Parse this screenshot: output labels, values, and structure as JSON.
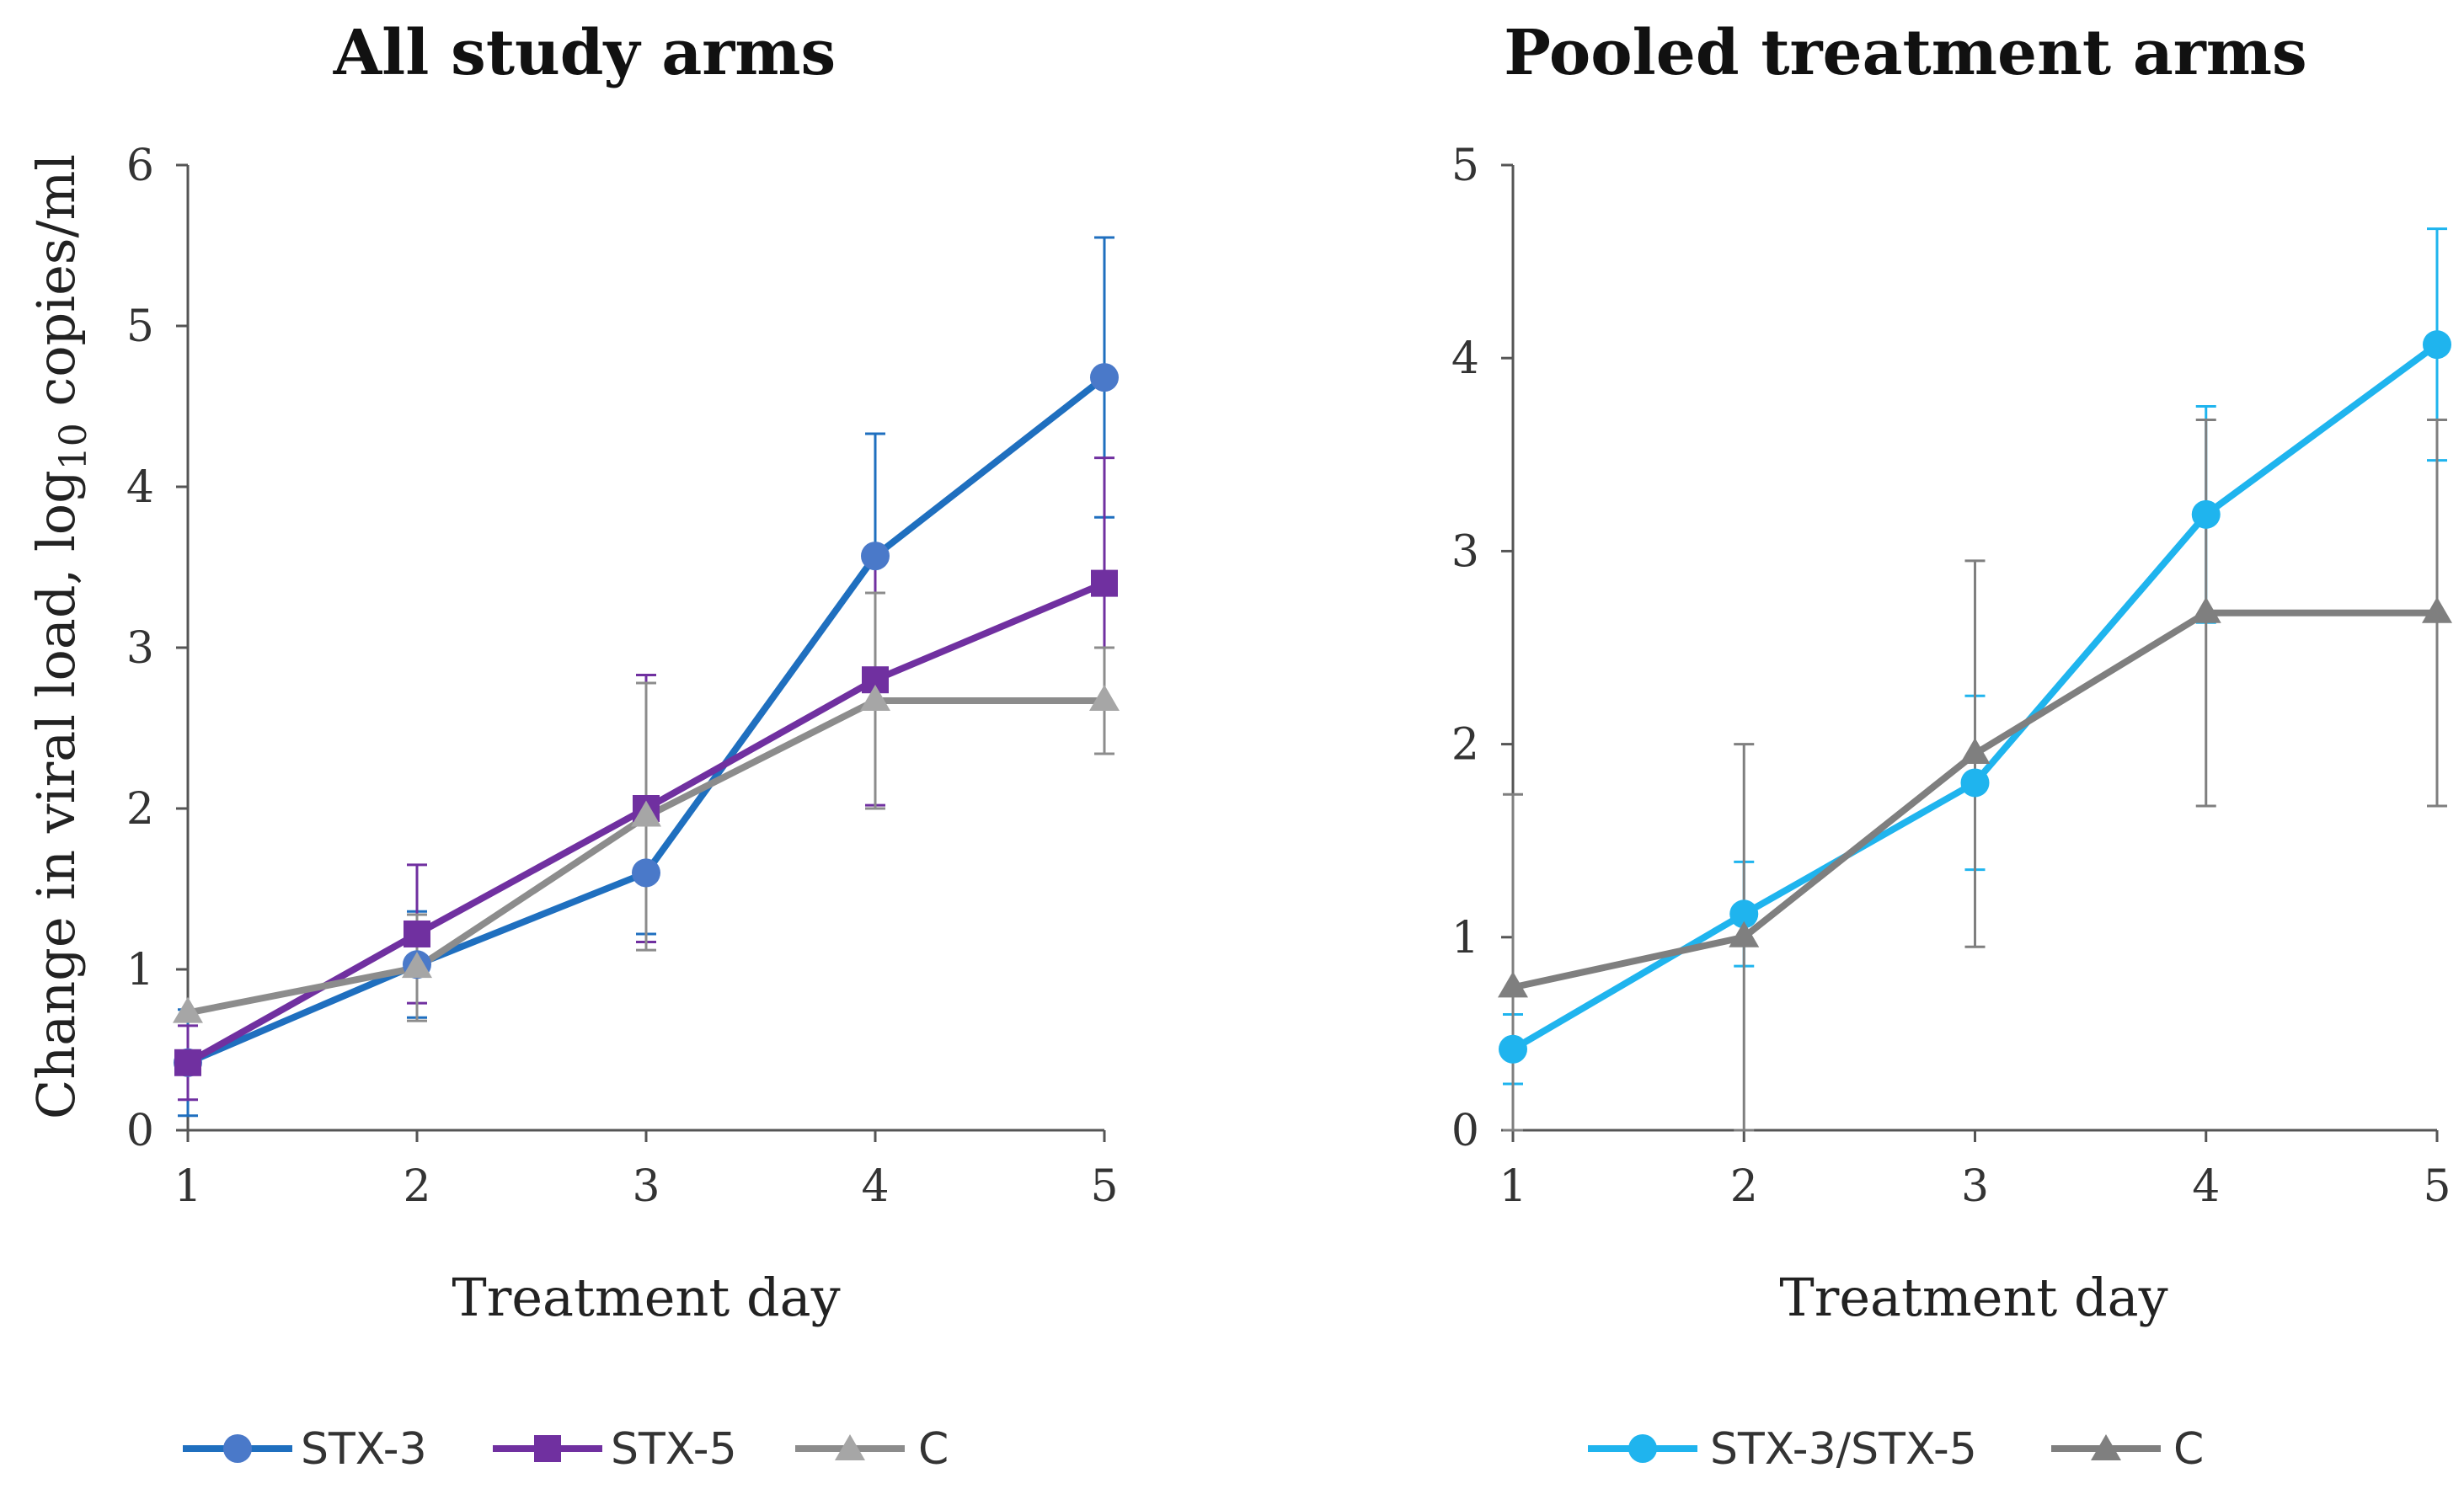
{
  "chart_data": [
    {
      "type": "line",
      "title": "All study arms",
      "xlabel": "Treatment day",
      "ylabel": "Change in viral load, log10 copies/ml",
      "ylabel_parts": [
        "Change in viral load, log",
        "10",
        " copies/ml"
      ],
      "x": [
        1,
        2,
        3,
        4,
        5
      ],
      "xlim": [
        1,
        5
      ],
      "ylim": [
        0,
        6
      ],
      "yticks": [
        0,
        1,
        2,
        3,
        4,
        5,
        6
      ],
      "xticks": [
        1,
        2,
        3,
        4,
        5
      ],
      "legend_position": "bottom",
      "series": [
        {
          "name": "STX-3",
          "color": "#1f6fbf",
          "marker": "circle",
          "marker_color": "#4a79c9",
          "values": [
            0.42,
            1.03,
            1.6,
            3.57,
            4.68
          ],
          "error": [
            0.33,
            0.33,
            0.38,
            0.76,
            0.87
          ]
        },
        {
          "name": "STX-5",
          "color": "#7030a0",
          "marker": "square",
          "marker_color": "#7030a0",
          "values": [
            0.42,
            1.22,
            2.0,
            2.8,
            3.4
          ],
          "error": [
            0.23,
            0.43,
            0.83,
            0.78,
            0.78
          ]
        },
        {
          "name": "C",
          "color": "#8c8c8c",
          "marker": "triangle",
          "marker_color": "#a6a6a6",
          "values": [
            0.73,
            1.01,
            1.95,
            2.67,
            2.67
          ],
          "error": [
            0.0,
            0.33,
            0.83,
            0.67,
            0.33
          ]
        }
      ]
    },
    {
      "type": "line",
      "title": "Pooled treatment arms",
      "xlabel": "Treatment day",
      "ylabel": "",
      "x": [
        1,
        2,
        3,
        4,
        5
      ],
      "xlim": [
        1,
        5
      ],
      "ylim": [
        0,
        5
      ],
      "yticks": [
        0,
        1,
        2,
        3,
        4,
        5
      ],
      "xticks": [
        1,
        2,
        3,
        4,
        5
      ],
      "legend_position": "bottom",
      "series": [
        {
          "name": "STX-3/STX-5",
          "color": "#1fb4ee",
          "marker": "circle",
          "marker_color": "#1fb4ee",
          "values": [
            0.42,
            1.12,
            1.8,
            3.19,
            4.07
          ],
          "error": [
            0.18,
            0.27,
            0.45,
            0.56,
            0.6
          ]
        },
        {
          "name": "C",
          "color": "#7f7f7f",
          "marker": "triangle",
          "marker_color": "#7f7f7f",
          "values": [
            0.74,
            1.0,
            1.95,
            2.68,
            2.68
          ],
          "error": [
            1.0,
            1.0,
            1.0,
            1.0,
            1.0
          ]
        }
      ]
    }
  ]
}
